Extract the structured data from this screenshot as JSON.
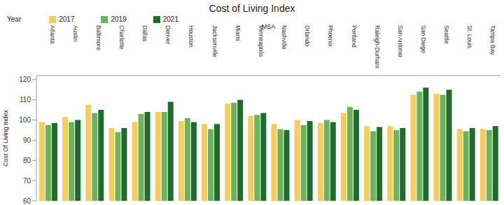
{
  "chart_data": {
    "type": "bar",
    "title": "Cost of Living Index",
    "legend_title": "Year",
    "x_label": "MSA",
    "y_label": "Cost Of Living Index",
    "legend": "top-left",
    "grid": false,
    "categories": [
      "Atlanta",
      "Austin",
      "Baltimore",
      "Charlotte",
      "Dallas",
      "Denver",
      "Houston",
      "Jacksonville",
      "Miami",
      "Minneapolis",
      "Nashville",
      "Orlando",
      "Phoenix",
      "Portland",
      "Raleigh-Durham",
      "San Antonio",
      "San Diego",
      "Seattle",
      "St. Louis",
      "Tampa Bay"
    ],
    "series": [
      {
        "name": "2017",
        "color": "#f3cd5f",
        "values": [
          99,
          101.5,
          107.5,
          96,
          99,
          104,
          99.5,
          98,
          108,
          102,
          98,
          100,
          98.5,
          103.5,
          97,
          97,
          112.5,
          113,
          95.5,
          95.5
        ]
      },
      {
        "name": "2019",
        "color": "#6db35a",
        "values": [
          97.5,
          99,
          103.5,
          94,
          103,
          104,
          101,
          95.5,
          108.5,
          102.5,
          95.5,
          97.5,
          100,
          106.5,
          94.5,
          95,
          114,
          112.5,
          94.5,
          95
        ]
      },
      {
        "name": "2021",
        "color": "#1f6b30",
        "values": [
          98.5,
          100,
          105,
          96,
          104,
          109,
          99,
          98,
          110,
          103.5,
          95,
          99.5,
          99,
          105,
          96.5,
          96,
          116,
          115,
          96,
          97
        ]
      }
    ],
    "ylim": [
      60,
      122
    ],
    "yticks": [
      60,
      70,
      80,
      90,
      100,
      110,
      120
    ]
  }
}
